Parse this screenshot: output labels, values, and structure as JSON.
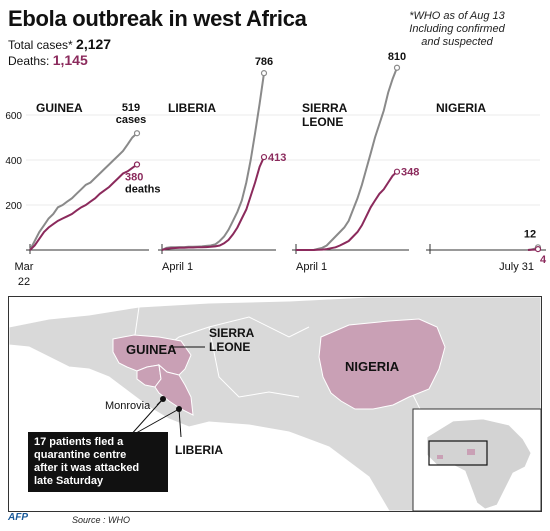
{
  "header": {
    "title": "Ebola outbreak in west Africa",
    "total_label": "Total cases*",
    "total_value": "2,127",
    "deaths_label": "Deaths:",
    "deaths_value": "1,145",
    "note_lines": [
      "*WHO as of Aug 13",
      "Including confirmed",
      "and suspected"
    ]
  },
  "colors": {
    "cases": "#8a8a8a",
    "deaths": "#8b2a5c",
    "map_fill": "#c9a0b5",
    "land": "#d3d3d3"
  },
  "chart_data": [
    {
      "type": "line",
      "title": "GUINEA",
      "x_start_label": "Mar 22",
      "ylim": [
        0,
        800
      ],
      "yticks": [
        200,
        400,
        600
      ],
      "series": [
        {
          "name": "cases",
          "final_label": "519",
          "label_extra": "cases",
          "values": [
            0,
            40,
            80,
            110,
            140,
            160,
            190,
            200,
            215,
            230,
            250,
            270,
            290,
            300,
            320,
            340,
            360,
            380,
            400,
            420,
            440,
            470,
            500,
            519
          ]
        },
        {
          "name": "deaths",
          "final_label": "380",
          "label_extra": "deaths",
          "values": [
            0,
            20,
            50,
            80,
            100,
            115,
            130,
            140,
            150,
            160,
            175,
            190,
            200,
            215,
            230,
            250,
            265,
            280,
            300,
            320,
            340,
            350,
            365,
            380
          ]
        }
      ]
    },
    {
      "type": "line",
      "title": "LIBERIA",
      "x_start_label": "April 1",
      "ylim": [
        0,
        800
      ],
      "series": [
        {
          "name": "cases",
          "final_label": "786",
          "values": [
            0,
            10,
            12,
            12,
            13,
            13,
            14,
            14,
            15,
            16,
            18,
            20,
            25,
            40,
            60,
            90,
            130,
            170,
            220,
            300,
            400,
            520,
            650,
            786
          ]
        },
        {
          "name": "deaths",
          "final_label": "413",
          "values": [
            0,
            6,
            8,
            9,
            10,
            10,
            11,
            11,
            12,
            12,
            13,
            14,
            16,
            20,
            30,
            45,
            70,
            100,
            140,
            180,
            240,
            300,
            370,
            413
          ]
        }
      ]
    },
    {
      "type": "line",
      "title": "SIERRA",
      "title_line2": "LEONE",
      "x_start_label": "April 1",
      "ylim": [
        0,
        800
      ],
      "series": [
        {
          "name": "cases",
          "final_label": "810",
          "values": [
            0,
            0,
            0,
            0,
            0,
            5,
            10,
            20,
            40,
            60,
            80,
            100,
            130,
            180,
            230,
            290,
            360,
            430,
            500,
            560,
            620,
            700,
            760,
            810
          ]
        },
        {
          "name": "deaths",
          "final_label": "348",
          "values": [
            0,
            0,
            0,
            0,
            0,
            1,
            2,
            4,
            8,
            12,
            20,
            30,
            40,
            60,
            80,
            110,
            150,
            190,
            220,
            250,
            270,
            300,
            330,
            348
          ]
        }
      ]
    },
    {
      "type": "line",
      "title": "NIGERIA",
      "x_end_label": "July 31",
      "ylim": [
        0,
        800
      ],
      "series": [
        {
          "name": "cases",
          "final_label": "12",
          "values": [
            0,
            2,
            6,
            12
          ]
        },
        {
          "name": "deaths",
          "final_label": "4",
          "values": [
            0,
            1,
            2,
            4
          ]
        }
      ]
    }
  ],
  "map": {
    "labels": {
      "guinea": "GUINEA",
      "sierra_1": "SIERRA",
      "sierra_2": "LEONE",
      "nigeria": "NIGERIA",
      "monrovia": "Monrovia",
      "liberia": "LIBERIA"
    },
    "callout_lines": [
      "17 patients fled a",
      "quarantine centre",
      "after it was attacked",
      "late Saturday"
    ]
  },
  "footer": {
    "credit": "AFP",
    "source": "Source : WHO"
  }
}
